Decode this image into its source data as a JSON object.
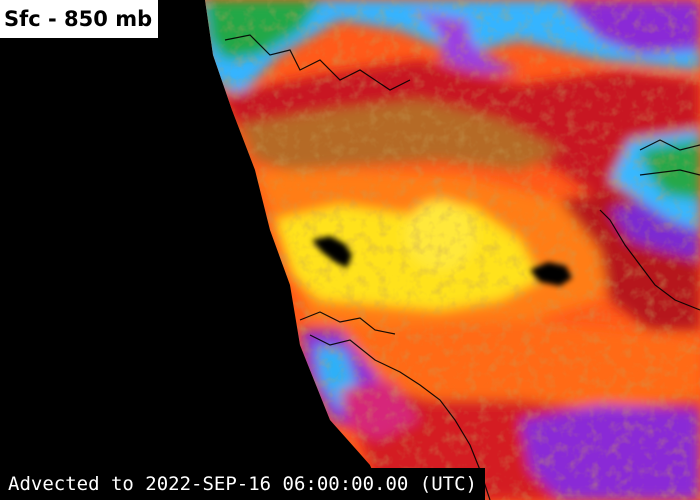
{
  "layer": {
    "title": "Sfc - 850 mb"
  },
  "map": {
    "product": "layer precipitable water composite",
    "colors": {
      "no_data": "#000000",
      "very_dry": "#7a1fd0",
      "dry": "#39b6ff",
      "moist_low": "#c8161b",
      "moist_mid": "#ff4a1a",
      "moist_high": "#ff9a12",
      "very_moist": "#ffe21a",
      "land_dry": "#24a844",
      "coastline": "#000000"
    }
  },
  "footer": {
    "timestamp": "Advected to 2022-SEP-16 06:00:00.00 (UTC)"
  }
}
